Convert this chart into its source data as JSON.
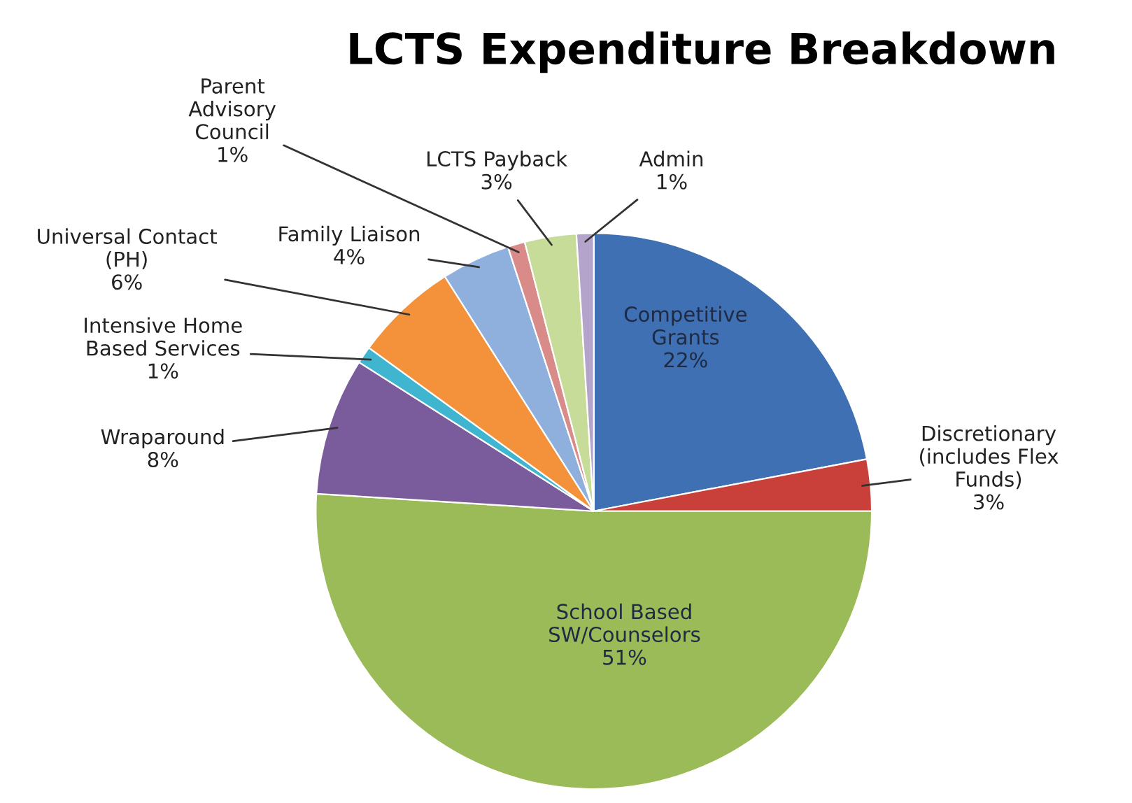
{
  "chart_data": {
    "type": "pie",
    "title": "LCTS Expenditure Breakdown",
    "categories": [
      "Competitive\nGrants",
      "Discretionary\n(includes Flex\nFunds)",
      "School Based\nSW/Counselors",
      "Wraparound",
      "Intensive Home\nBased Services",
      "Universal Contact\n(PH)",
      "Family Liaison",
      "Parent\nAdvisory\nCouncil",
      "LCTS Payback",
      "Admin"
    ],
    "values": [
      22,
      3,
      51,
      8,
      1,
      6,
      4,
      1,
      3,
      1
    ],
    "value_labels": [
      "22%",
      "3%",
      "51%",
      "8%",
      "1%",
      "6%",
      "4%",
      "1%",
      "3%",
      "1%"
    ],
    "colors": [
      "#3f70b3",
      "#c9403b",
      "#9bbb59",
      "#7a5b9c",
      "#3fb5cf",
      "#f4913b",
      "#8fb0dc",
      "#d98b89",
      "#c6dc98",
      "#b4a4cc"
    ]
  }
}
